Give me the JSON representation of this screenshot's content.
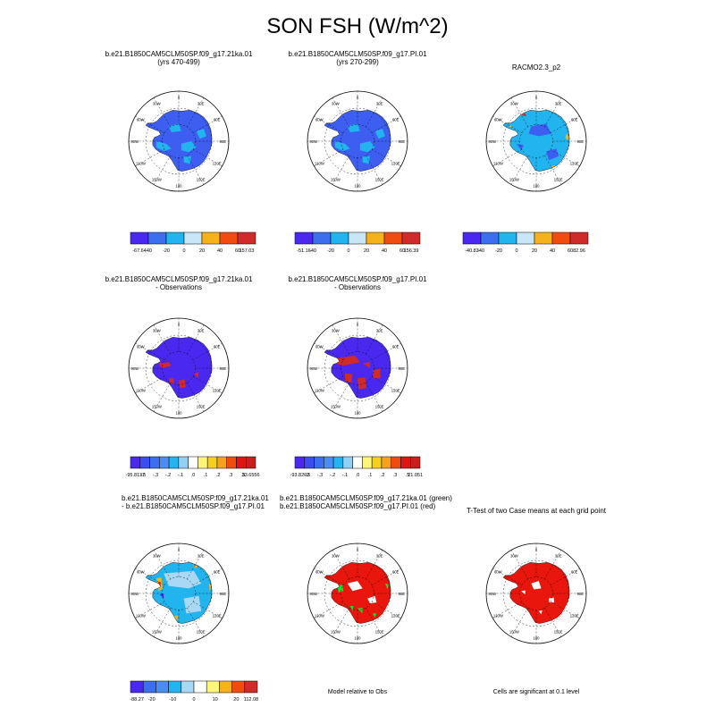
{
  "title": "SON FSH (W/m^2)",
  "meridians": [
    {
      "label": "0",
      "deg": 0
    },
    {
      "label": "30E",
      "deg": 30
    },
    {
      "label": "60E",
      "deg": 60
    },
    {
      "label": "90E",
      "deg": 90
    },
    {
      "label": "120E",
      "deg": 120
    },
    {
      "label": "150E",
      "deg": 150
    },
    {
      "label": "180",
      "deg": 180
    },
    {
      "label": "150W",
      "deg": 210
    },
    {
      "label": "120W",
      "deg": 240
    },
    {
      "label": "90W",
      "deg": 270
    },
    {
      "label": "60W",
      "deg": 300
    },
    {
      "label": "30W",
      "deg": 330
    }
  ],
  "colors": {
    "ocean": "#ffffff",
    "land_blue": "#3d5ef0",
    "land_deepblue": "#4a28f0",
    "land_lightblue": "#22b4ee",
    "land_paleblue": "#a9d8f5",
    "land_orange": "#f6b21b",
    "land_red": "#e8160c",
    "land_darkred": "#d02a2a",
    "land_green": "#27d82b"
  },
  "chart_data": [
    {
      "type": "heatmap",
      "id": "p1",
      "title_lines": [
        "b.e21.B1850CAM5CLM50SP.f09_g17.21ka.01",
        "(yrs 470-499)"
      ],
      "colorbar": {
        "min": "-67.64",
        "max": "157.03",
        "ticks": [
          "-40",
          "-20",
          "0",
          "20",
          "40",
          "60"
        ],
        "colors": [
          "#4a28f0",
          "#3d6ef0",
          "#22b4ee",
          "#c8e6f7",
          "#f6b21b",
          "#f04c10",
          "#d02a2a"
        ]
      }
    },
    {
      "type": "heatmap",
      "id": "p2",
      "title_lines": [
        "b.e21.B1850CAM5CLM50SP.f09_g17.PI.01",
        "(yrs 270-299)"
      ],
      "colorbar": {
        "min": "-51.16",
        "max": "156.39",
        "ticks": [
          "-40",
          "-20",
          "0",
          "20",
          "40",
          "60"
        ],
        "colors": [
          "#4a28f0",
          "#3d6ef0",
          "#22b4ee",
          "#c8e6f7",
          "#f6b21b",
          "#f04c10",
          "#d02a2a"
        ]
      }
    },
    {
      "type": "heatmap",
      "id": "p3",
      "title_lines": [
        "RACMO2.3_p2"
      ],
      "colorbar": {
        "min": "-40.83",
        "max": "82.96",
        "ticks": [
          "-40",
          "-20",
          "0",
          "20",
          "40",
          "60"
        ],
        "colors": [
          "#4a28f0",
          "#3d6ef0",
          "#22b4ee",
          "#c8e6f7",
          "#f6b21b",
          "#f04c10",
          "#d02a2a"
        ]
      }
    },
    {
      "type": "heatmap",
      "id": "p4",
      "title_lines": [
        "b.e21.B1850CAM5CLM50SP.f09_g17.21ka.01",
        "- Observations"
      ],
      "colorbar": {
        "min": "-95.8137",
        "max": "33.6556",
        "ticks": [
          "-.5",
          "-.3",
          "-.2",
          "-.1",
          ".0",
          ".1",
          ".2",
          ".3",
          ".5"
        ],
        "colors": [
          "#4a28f0",
          "#3d4ef0",
          "#3d6ef0",
          "#4a8ef2",
          "#22b4ee",
          "#8fd0f4",
          "#ffffff",
          "#fff57a",
          "#f6d01b",
          "#f6a01b",
          "#f04c10",
          "#e01414",
          "#c81e1e"
        ]
      }
    },
    {
      "type": "heatmap",
      "id": "p5",
      "title_lines": [
        "b.e21.B1850CAM5CLM50SP.f09_g17.PI.01",
        "- Observations"
      ],
      "colorbar": {
        "min": "-93.8202",
        "max": "21.051",
        "ticks": [
          "-.5",
          "-.3",
          "-.2",
          "-.1",
          ".0",
          ".1",
          ".2",
          ".3",
          ".5"
        ],
        "colors": [
          "#4a28f0",
          "#3d4ef0",
          "#3d6ef0",
          "#4a8ef2",
          "#22b4ee",
          "#8fd0f4",
          "#ffffff",
          "#fff57a",
          "#f6d01b",
          "#f6a01b",
          "#f04c10",
          "#e01414",
          "#c81e1e"
        ]
      }
    },
    {
      "type": "heatmap",
      "id": "p6",
      "title_lines": [
        "b.e21.B1850CAM5CLM50SP.f09_g17.21ka.01",
        "- b.e21.B1850CAM5CLM50SP.f09_g17.PI.01"
      ],
      "colorbar": {
        "min": "-88.27",
        "max": "112.08",
        "ticks": [
          "-20",
          "-10",
          "0",
          "10",
          "20"
        ],
        "colors": [
          "#4a28f0",
          "#3d6ef0",
          "#4a8ef2",
          "#22b4ee",
          "#a9d8f5",
          "#ffffff",
          "#fff57a",
          "#f6b21b",
          "#f04c10",
          "#d02a2a"
        ]
      }
    },
    {
      "type": "heatmap",
      "id": "p7",
      "title_lines": [
        "b.e21.B1850CAM5CLM50SP.f09_g17.21ka.01 (green)",
        "b.e21.B1850CAM5CLM50SP.f09_g17.PI.01 (red)"
      ],
      "note": "Model relative to Obs"
    },
    {
      "type": "heatmap",
      "id": "p8",
      "title_lines": [
        "T-Test of two Case means at each grid point"
      ],
      "note": "Cells are significant at 0.1 level"
    }
  ]
}
